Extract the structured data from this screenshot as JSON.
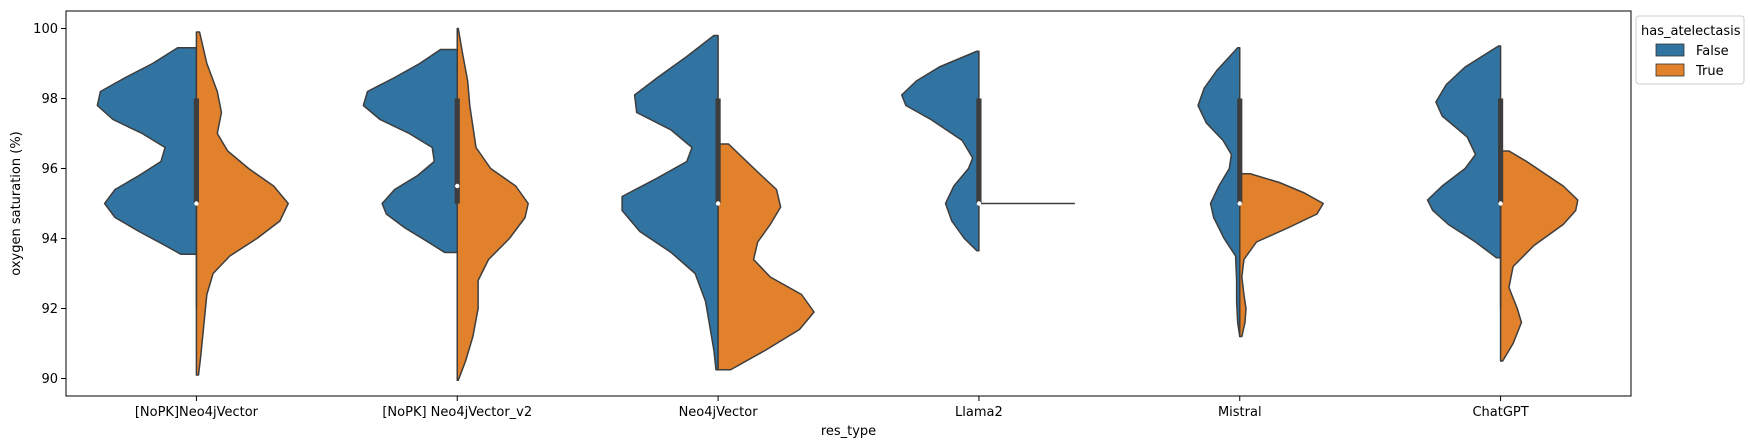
{
  "chart_data": {
    "type": "violin",
    "split": true,
    "xlabel": "res_type",
    "ylabel": "oxygen saturation (%)",
    "ylim": [
      89.5,
      100.5
    ],
    "yticks": [
      90,
      92,
      94,
      96,
      98,
      100
    ],
    "categories": [
      "[NoPK]Neo4jVector",
      "[NoPK] Neo4jVector_v2",
      "Neo4jVector",
      "Llama2",
      "Mistral",
      "ChatGPT"
    ],
    "legend": {
      "title": "has_atelectasis",
      "placement": "upper-right-outside",
      "entries": [
        {
          "label": "False",
          "color": "#3274a1"
        },
        {
          "label": "True",
          "color": "#e1812c"
        }
      ]
    },
    "series": [
      {
        "name": "False",
        "color": "#3274a1",
        "side": "left",
        "violins": [
          {
            "ymin": 93.55,
            "ymax": 99.45,
            "profile": [
              [
                93.55,
                0.15
              ],
              [
                93.8,
                0.3
              ],
              [
                94.2,
                0.55
              ],
              [
                94.6,
                0.78
              ],
              [
                95.0,
                0.88
              ],
              [
                95.4,
                0.78
              ],
              [
                95.8,
                0.55
              ],
              [
                96.2,
                0.34
              ],
              [
                96.6,
                0.3
              ],
              [
                97.0,
                0.52
              ],
              [
                97.4,
                0.8
              ],
              [
                97.8,
                0.95
              ],
              [
                98.2,
                0.92
              ],
              [
                98.6,
                0.68
              ],
              [
                99.0,
                0.42
              ],
              [
                99.45,
                0.18
              ]
            ]
          },
          {
            "ymin": 93.6,
            "ymax": 99.4,
            "profile": [
              [
                93.6,
                0.12
              ],
              [
                93.9,
                0.28
              ],
              [
                94.3,
                0.5
              ],
              [
                94.7,
                0.68
              ],
              [
                95.0,
                0.72
              ],
              [
                95.4,
                0.6
              ],
              [
                95.8,
                0.38
              ],
              [
                96.2,
                0.22
              ],
              [
                96.6,
                0.24
              ],
              [
                97.0,
                0.46
              ],
              [
                97.4,
                0.74
              ],
              [
                97.8,
                0.9
              ],
              [
                98.2,
                0.86
              ],
              [
                98.6,
                0.6
              ],
              [
                99.0,
                0.36
              ],
              [
                99.4,
                0.16
              ]
            ]
          },
          {
            "ymin": 90.25,
            "ymax": 99.8,
            "profile": [
              [
                90.25,
                0.02
              ],
              [
                90.8,
                0.04
              ],
              [
                91.5,
                0.08
              ],
              [
                92.2,
                0.12
              ],
              [
                93.0,
                0.22
              ],
              [
                93.6,
                0.45
              ],
              [
                94.2,
                0.75
              ],
              [
                94.8,
                0.92
              ],
              [
                95.2,
                0.92
              ],
              [
                95.7,
                0.6
              ],
              [
                96.2,
                0.3
              ],
              [
                96.6,
                0.25
              ],
              [
                97.1,
                0.45
              ],
              [
                97.6,
                0.78
              ],
              [
                98.1,
                0.8
              ],
              [
                98.6,
                0.58
              ],
              [
                99.2,
                0.3
              ],
              [
                99.8,
                0.04
              ]
            ]
          },
          {
            "ymin": 93.65,
            "ymax": 99.35,
            "profile": [
              [
                93.65,
                0.02
              ],
              [
                94.0,
                0.14
              ],
              [
                94.5,
                0.26
              ],
              [
                95.0,
                0.32
              ],
              [
                95.5,
                0.24
              ],
              [
                96.0,
                0.1
              ],
              [
                96.3,
                0.06
              ],
              [
                96.8,
                0.16
              ],
              [
                97.4,
                0.46
              ],
              [
                97.8,
                0.7
              ],
              [
                98.1,
                0.74
              ],
              [
                98.5,
                0.6
              ],
              [
                98.9,
                0.38
              ],
              [
                99.35,
                0.02
              ]
            ]
          },
          {
            "ymin": 91.2,
            "ymax": 99.45,
            "profile": [
              [
                91.2,
                0.0
              ],
              [
                91.6,
                0.02
              ],
              [
                92.2,
                0.03
              ],
              [
                92.8,
                0.03
              ],
              [
                93.5,
                0.04
              ],
              [
                94.0,
                0.15
              ],
              [
                94.6,
                0.25
              ],
              [
                95.0,
                0.28
              ],
              [
                95.5,
                0.2
              ],
              [
                96.0,
                0.1
              ],
              [
                96.4,
                0.08
              ],
              [
                96.8,
                0.16
              ],
              [
                97.3,
                0.32
              ],
              [
                97.8,
                0.4
              ],
              [
                98.3,
                0.34
              ],
              [
                98.8,
                0.22
              ],
              [
                99.45,
                0.02
              ]
            ]
          },
          {
            "ymin": 93.45,
            "ymax": 99.5,
            "profile": [
              [
                93.45,
                0.04
              ],
              [
                93.9,
                0.24
              ],
              [
                94.4,
                0.5
              ],
              [
                94.8,
                0.65
              ],
              [
                95.1,
                0.7
              ],
              [
                95.5,
                0.56
              ],
              [
                96.0,
                0.34
              ],
              [
                96.4,
                0.24
              ],
              [
                96.9,
                0.32
              ],
              [
                97.5,
                0.56
              ],
              [
                97.9,
                0.62
              ],
              [
                98.4,
                0.52
              ],
              [
                98.9,
                0.34
              ],
              [
                99.5,
                0.02
              ]
            ]
          }
        ]
      },
      {
        "name": "True",
        "color": "#e1812c",
        "side": "right",
        "violins": [
          {
            "ymin": 90.1,
            "ymax": 99.9,
            "profile": [
              [
                90.1,
                0.02
              ],
              [
                90.6,
                0.04
              ],
              [
                91.2,
                0.06
              ],
              [
                91.8,
                0.08
              ],
              [
                92.4,
                0.1
              ],
              [
                93.0,
                0.16
              ],
              [
                93.5,
                0.32
              ],
              [
                94.0,
                0.58
              ],
              [
                94.5,
                0.8
              ],
              [
                95.0,
                0.88
              ],
              [
                95.5,
                0.74
              ],
              [
                96.0,
                0.5
              ],
              [
                96.5,
                0.3
              ],
              [
                97.0,
                0.2
              ],
              [
                97.6,
                0.24
              ],
              [
                98.2,
                0.2
              ],
              [
                99.0,
                0.1
              ],
              [
                99.9,
                0.03
              ]
            ]
          },
          {
            "ymin": 89.95,
            "ymax": 100.0,
            "profile": [
              [
                89.95,
                0.01
              ],
              [
                90.5,
                0.08
              ],
              [
                91.2,
                0.15
              ],
              [
                92.0,
                0.2
              ],
              [
                92.8,
                0.2
              ],
              [
                93.4,
                0.3
              ],
              [
                94.0,
                0.5
              ],
              [
                94.6,
                0.65
              ],
              [
                95.0,
                0.68
              ],
              [
                95.5,
                0.56
              ],
              [
                96.0,
                0.32
              ],
              [
                96.6,
                0.18
              ],
              [
                97.2,
                0.15
              ],
              [
                97.8,
                0.12
              ],
              [
                98.5,
                0.1
              ],
              [
                99.3,
                0.05
              ],
              [
                100.0,
                0.01
              ]
            ]
          },
          {
            "ymin": 90.25,
            "ymax": 96.7,
            "profile": [
              [
                90.25,
                0.12
              ],
              [
                90.8,
                0.45
              ],
              [
                91.4,
                0.78
              ],
              [
                91.9,
                0.92
              ],
              [
                92.4,
                0.8
              ],
              [
                92.9,
                0.5
              ],
              [
                93.4,
                0.34
              ],
              [
                93.9,
                0.38
              ],
              [
                94.4,
                0.5
              ],
              [
                94.9,
                0.6
              ],
              [
                95.4,
                0.56
              ],
              [
                95.9,
                0.38
              ],
              [
                96.3,
                0.24
              ],
              [
                96.7,
                0.1
              ]
            ]
          },
          {
            "ymin": 95.0,
            "ymax": 95.0,
            "profile": [
              [
                94.99,
                0.92
              ],
              [
                95.01,
                0.92
              ]
            ],
            "flat": true
          },
          {
            "ymin": 91.2,
            "ymax": 95.85,
            "profile": [
              [
                91.2,
                0.02
              ],
              [
                91.6,
                0.05
              ],
              [
                92.0,
                0.06
              ],
              [
                92.4,
                0.04
              ],
              [
                92.9,
                0.02
              ],
              [
                93.4,
                0.04
              ],
              [
                93.9,
                0.16
              ],
              [
                94.3,
                0.46
              ],
              [
                94.7,
                0.74
              ],
              [
                95.0,
                0.8
              ],
              [
                95.3,
                0.62
              ],
              [
                95.6,
                0.38
              ],
              [
                95.85,
                0.1
              ]
            ]
          },
          {
            "ymin": 90.5,
            "ymax": 96.5,
            "profile": [
              [
                90.5,
                0.02
              ],
              [
                91.0,
                0.12
              ],
              [
                91.6,
                0.2
              ],
              [
                92.0,
                0.16
              ],
              [
                92.6,
                0.08
              ],
              [
                93.2,
                0.12
              ],
              [
                93.8,
                0.32
              ],
              [
                94.4,
                0.6
              ],
              [
                94.8,
                0.72
              ],
              [
                95.1,
                0.74
              ],
              [
                95.5,
                0.6
              ],
              [
                95.9,
                0.4
              ],
              [
                96.2,
                0.25
              ],
              [
                96.5,
                0.08
              ]
            ]
          }
        ]
      }
    ],
    "box": [
      {
        "q1": 95.0,
        "median": 95.0,
        "q3": 98.0,
        "wmin": 92.0,
        "wmax": 98.0
      },
      {
        "q1": 95.0,
        "median": 95.5,
        "q3": 98.0,
        "wmin": 92.0,
        "wmax": 98.0
      },
      {
        "q1": 95.0,
        "median": 95.0,
        "q3": 98.0,
        "wmin": 95.0,
        "wmax": 98.0
      },
      {
        "q1": 95.0,
        "median": 95.0,
        "q3": 98.0,
        "wmin": 95.0,
        "wmax": 98.0
      },
      {
        "q1": 95.0,
        "median": 95.0,
        "q3": 98.0,
        "wmin": 92.0,
        "wmax": 98.0
      },
      {
        "q1": 95.0,
        "median": 95.0,
        "q3": 98.0,
        "wmin": 92.0,
        "wmax": 98.0
      }
    ]
  }
}
